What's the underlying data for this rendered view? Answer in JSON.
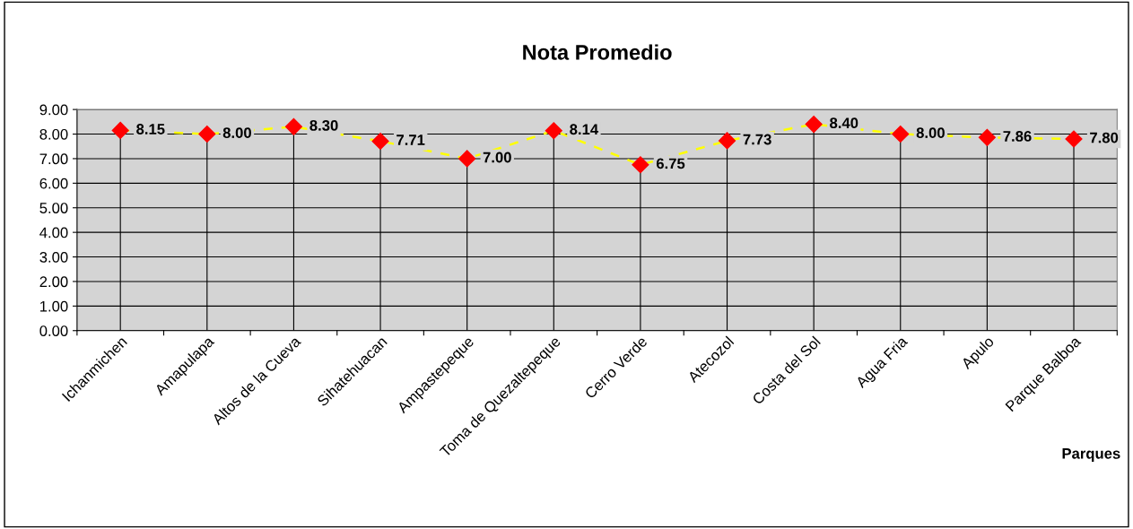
{
  "chart_data": {
    "type": "line",
    "title": "Nota Promedio",
    "xlabel": "Parques",
    "categories": [
      "Ichanmichen",
      "Amapulapa",
      "Altos de la Cueva",
      "Sihatehuacan",
      "Ampastepeque",
      "Toma de Quezaltepeque",
      "Cerro Verde",
      "Atecozol",
      "Costa del Sol",
      "Agua Fria",
      "Apulo",
      "Parque Balboa"
    ],
    "series": [
      {
        "color": "#ffff00",
        "values": [
          8.15,
          8.0,
          8.3,
          7.71,
          7.0,
          8.14,
          6.75,
          7.73,
          8.4,
          8.0,
          7.86,
          7.8
        ],
        "value_labels": [
          "8.15",
          "8.00",
          "8.30",
          "7.71",
          "7.00",
          "8.14",
          "6.75",
          "7.73",
          "8.40",
          "8.00",
          "7.86",
          "7.80"
        ]
      }
    ],
    "marker": "diamond",
    "line_style": "dashed",
    "grid": true,
    "legend": false,
    "ylim": [
      0,
      9
    ],
    "yticks": [
      {
        "value": 0,
        "label": "0.00"
      },
      {
        "value": 1,
        "label": "1.00"
      },
      {
        "value": 2,
        "label": "2.00"
      },
      {
        "value": 3,
        "label": "3.00"
      },
      {
        "value": 4,
        "label": "4.00"
      },
      {
        "value": 5,
        "label": "5.00"
      },
      {
        "value": 6,
        "label": "6.00"
      },
      {
        "value": 7,
        "label": "7.00"
      },
      {
        "value": 8,
        "label": "8.00"
      },
      {
        "value": 9,
        "label": "9.00"
      }
    ]
  }
}
